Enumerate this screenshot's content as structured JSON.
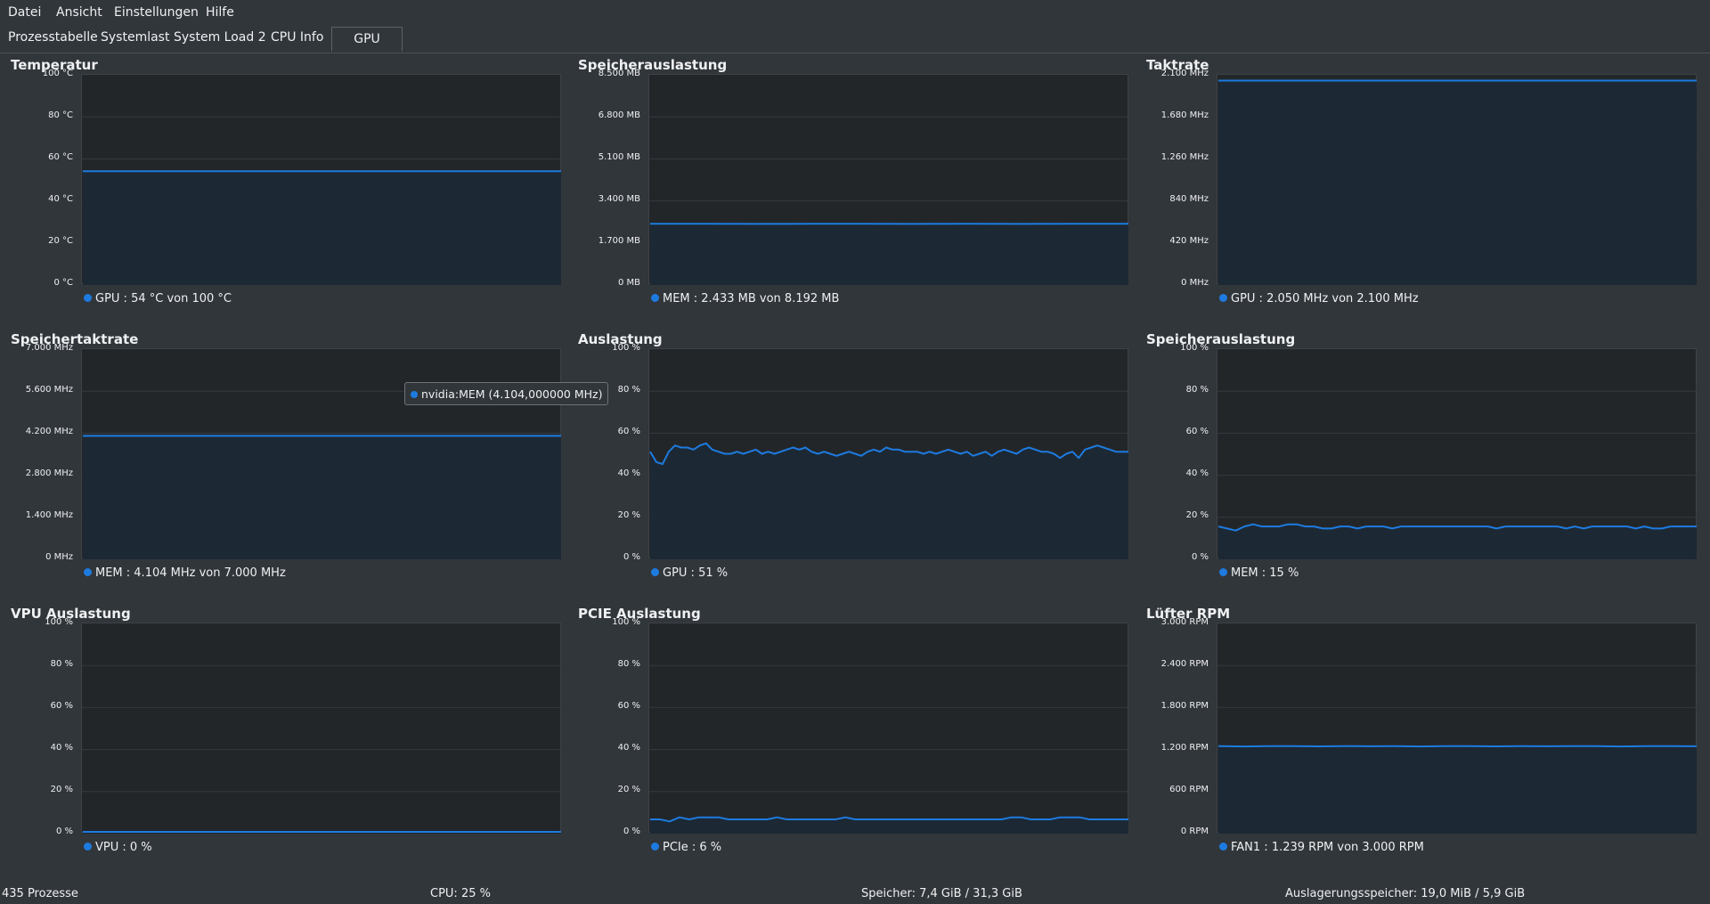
{
  "menu": [
    "Datei",
    "Ansicht",
    "Einstellungen",
    "Hilfe"
  ],
  "tabs": [
    "Prozesstabelle",
    "Systemlast",
    "System Load 2",
    "CPU Info",
    "GPU"
  ],
  "active_tab": "GPU",
  "accent_color": "#1d7be0",
  "tooltip": "nvidia:MEM (4.104,000000 MHz)",
  "panels": [
    {
      "title": "Temperatur",
      "ticks": [
        "100 °C",
        "80 °C",
        "60 °C",
        "40 °C",
        "20 °C",
        "0 °C"
      ],
      "legend": "GPU : 54 °C von 100 °C"
    },
    {
      "title": "Speicherauslastung",
      "ticks": [
        "8.500 MB",
        "6.800 MB",
        "5.100 MB",
        "3.400 MB",
        "1.700 MB",
        "0 MB"
      ],
      "legend": "MEM : 2.433 MB von 8.192 MB"
    },
    {
      "title": "Taktrate",
      "ticks": [
        "2.100 MHz",
        "1.680 MHz",
        "1.260 MHz",
        "840 MHz",
        "420 MHz",
        "0 MHz"
      ],
      "legend": "GPU : 2.050 MHz von 2.100 MHz"
    },
    {
      "title": "Speichertaktrate",
      "ticks": [
        "7.000 MHz",
        "5.600 MHz",
        "4.200 MHz",
        "2.800 MHz",
        "1.400 MHz",
        "0 MHz"
      ],
      "legend": "MEM : 4.104 MHz von 7.000 MHz"
    },
    {
      "title": "Auslastung",
      "ticks": [
        "100 %",
        "80 %",
        "60 %",
        "40 %",
        "20 %",
        "0 %"
      ],
      "legend": "GPU : 51 %"
    },
    {
      "title": "Speicherauslastung",
      "ticks": [
        "100 %",
        "80 %",
        "60 %",
        "40 %",
        "20 %",
        "0 %"
      ],
      "legend": "MEM : 15 %"
    },
    {
      "title": "VPU Auslastung",
      "ticks": [
        "100 %",
        "80 %",
        "60 %",
        "40 %",
        "20 %",
        "0 %"
      ],
      "legend": "VPU : 0 %"
    },
    {
      "title": "PCIE Auslastung",
      "ticks": [
        "100 %",
        "80 %",
        "60 %",
        "40 %",
        "20 %",
        "0 %"
      ],
      "legend": "PCIe : 6 %"
    },
    {
      "title": "Lüfter RPM",
      "ticks": [
        "3.000 RPM",
        "2.400 RPM",
        "1.800 RPM",
        "1.200 RPM",
        "600 RPM",
        "0 RPM"
      ],
      "legend": "FAN1 : 1.239 RPM von 3.000 RPM"
    }
  ],
  "status": {
    "processes": "435 Prozesse",
    "cpu": "CPU: 25 %",
    "memory": "Speicher: 7,4 GiB / 31,3 GiB",
    "swap": "Auslagerungsspeicher: 19,0 MiB / 5,9 GiB"
  },
  "chart_data": [
    {
      "type": "line",
      "title": "Temperatur",
      "ylim": [
        0,
        100
      ],
      "series": [
        {
          "name": "GPU",
          "values": [
            54,
            54,
            54,
            54,
            54,
            54,
            54,
            54,
            54,
            54
          ]
        }
      ]
    },
    {
      "type": "line",
      "title": "Speicherauslastung",
      "ylim": [
        0,
        8500
      ],
      "series": [
        {
          "name": "MEM",
          "values": [
            2433,
            2435,
            2430,
            2432,
            2433,
            2431,
            2433,
            2430,
            2432,
            2433
          ]
        }
      ]
    },
    {
      "type": "line",
      "title": "Taktrate",
      "ylim": [
        0,
        2100
      ],
      "series": [
        {
          "name": "GPU",
          "values": [
            2050,
            2050,
            2050,
            2050,
            2050,
            2050,
            2050,
            2050,
            2050,
            2050
          ]
        }
      ]
    },
    {
      "type": "line",
      "title": "Speichertaktrate",
      "ylim": [
        0,
        7000
      ],
      "series": [
        {
          "name": "MEM",
          "values": [
            4104,
            4104,
            4104,
            4104,
            4104,
            4104,
            4104,
            4104,
            4104,
            4104
          ]
        }
      ]
    },
    {
      "type": "line",
      "title": "Auslastung",
      "ylim": [
        0,
        100
      ],
      "series": [
        {
          "name": "GPU",
          "values": [
            51,
            46,
            45,
            51,
            54,
            53,
            53,
            52,
            54,
            55,
            52,
            51,
            50,
            50,
            51,
            50,
            51,
            52,
            50,
            51,
            50,
            51,
            52,
            53,
            52,
            53,
            51,
            50,
            51,
            50,
            49,
            50,
            51,
            50,
            49,
            51,
            52,
            51,
            53,
            52,
            52,
            51,
            51,
            51,
            50,
            51,
            50,
            51,
            52,
            51,
            50,
            51,
            49,
            50,
            51,
            49,
            51,
            52,
            51,
            50,
            52,
            53,
            52,
            51,
            51,
            50,
            48,
            50,
            51,
            48,
            52,
            53,
            54,
            53,
            52,
            51,
            51,
            51
          ]
        }
      ]
    },
    {
      "type": "line",
      "title": "Speicherauslastung",
      "ylim": [
        0,
        100
      ],
      "series": [
        {
          "name": "MEM",
          "values": [
            15,
            14,
            13,
            15,
            16,
            15,
            15,
            15,
            16,
            16,
            15,
            15,
            14,
            14,
            15,
            15,
            14,
            15,
            15,
            15,
            14,
            15,
            15,
            15,
            15,
            15,
            15,
            15,
            15,
            15,
            15,
            15,
            14,
            15,
            15,
            15,
            15,
            15,
            15,
            15,
            14,
            15,
            14,
            15,
            15,
            15,
            15,
            15,
            14,
            15,
            14,
            14,
            15,
            15,
            15,
            15
          ]
        }
      ]
    },
    {
      "type": "line",
      "title": "VPU Auslastung",
      "ylim": [
        0,
        100
      ],
      "series": [
        {
          "name": "VPU",
          "values": [
            0,
            0,
            0,
            0,
            0,
            0,
            0,
            0,
            0,
            0
          ]
        }
      ]
    },
    {
      "type": "line",
      "title": "PCIE Auslastung",
      "ylim": [
        0,
        100
      ],
      "series": [
        {
          "name": "PCIe",
          "values": [
            6,
            6,
            5,
            7,
            6,
            7,
            7,
            7,
            6,
            6,
            6,
            6,
            6,
            7,
            6,
            6,
            6,
            6,
            6,
            6,
            7,
            6,
            6,
            6,
            6,
            6,
            6,
            6,
            6,
            6,
            6,
            6,
            6,
            6,
            6,
            6,
            6,
            7,
            7,
            6,
            6,
            6,
            7,
            7,
            7,
            6,
            6,
            6,
            6,
            6
          ]
        }
      ]
    },
    {
      "type": "line",
      "title": "Lüfter RPM",
      "ylim": [
        0,
        3000
      ],
      "series": [
        {
          "name": "FAN1",
          "values": [
            1239,
            1235,
            1240,
            1238,
            1236,
            1240,
            1237,
            1239,
            1235,
            1238,
            1240,
            1236,
            1239,
            1237,
            1240,
            1238,
            1235,
            1239,
            1240,
            1237
          ]
        }
      ]
    }
  ]
}
